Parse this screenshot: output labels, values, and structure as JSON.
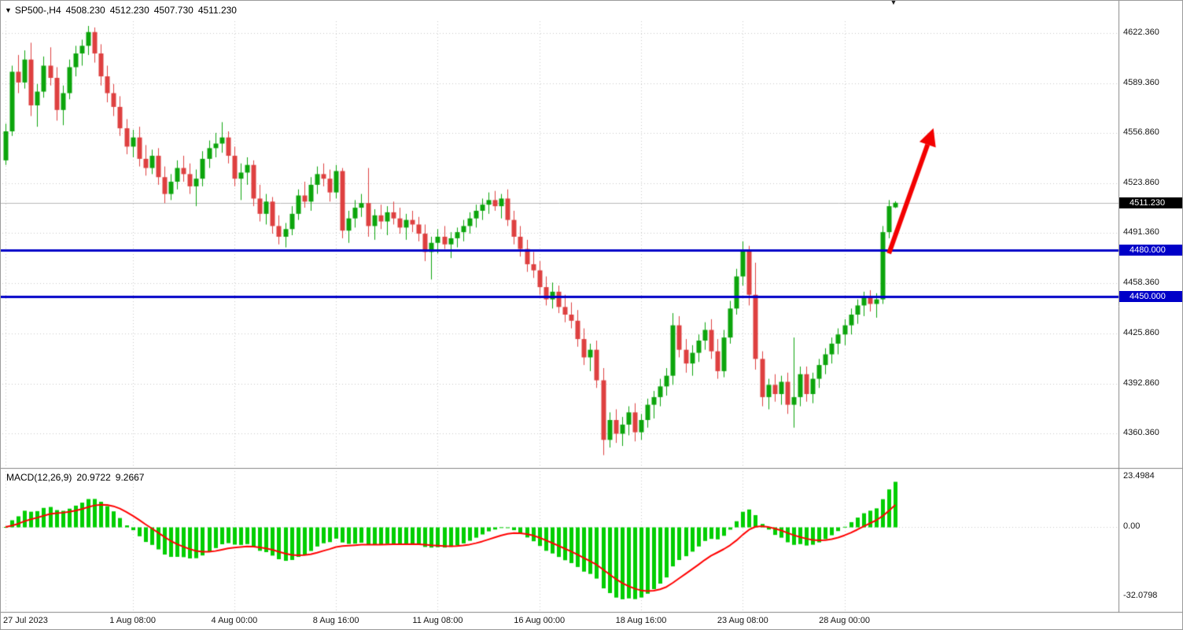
{
  "header": {
    "symbol_period": "SP500-,H4",
    "open": "4508.230",
    "high": "4512.230",
    "low": "4507.730",
    "close": "4511.230"
  },
  "price_axis": {
    "current": {
      "label": "4511.230",
      "value": 4511.23
    },
    "hlines": [
      {
        "label": "4480.000",
        "value": 4480.0
      },
      {
        "label": "4450.000",
        "value": 4450.0
      }
    ]
  },
  "macd": {
    "title": "MACD(12,26,9)",
    "macd_value": "20.9722",
    "signal_value": "9.2667"
  },
  "colors": {
    "grid": "#c9c9c9",
    "separator": "#848484",
    "candle_up": "#0ca50c",
    "candle_down": "#de4040",
    "macd_hist": "#00ce00",
    "macd_signal": "#ff0000",
    "hline_blue": "#0000c8",
    "current_line": "#b8b8b8",
    "current_tag_bg": "#000000",
    "arrow": "#f30000",
    "text": "#000000"
  },
  "chart_data": {
    "type": "candlestick",
    "symbol": "SP500-",
    "timeframe": "H4",
    "title": "SP500-,H4",
    "y_axis": {
      "visible_range": [
        4339,
        4630
      ],
      "ticks": [
        {
          "label": "4622.360",
          "value": 4622.36
        },
        {
          "label": "4589.360",
          "value": 4589.36
        },
        {
          "label": "4556.860",
          "value": 4556.86
        },
        {
          "label": "4523.860",
          "value": 4523.86
        },
        {
          "label": "4491.360",
          "value": 4491.36
        },
        {
          "label": "4458.360",
          "value": 4458.36
        },
        {
          "label": "4425.860",
          "value": 4425.86
        },
        {
          "label": "4392.860",
          "value": 4392.86
        },
        {
          "label": "4360.360",
          "value": 4360.36
        }
      ]
    },
    "x_axis": {
      "bars_visible": 141,
      "ticks": [
        {
          "label": "27 Jul 2023",
          "index": 0
        },
        {
          "label": "1 Aug 08:00",
          "index": 20
        },
        {
          "label": "4 Aug 00:00",
          "index": 36
        },
        {
          "label": "8 Aug 16:00",
          "index": 52
        },
        {
          "label": "11 Aug 08:00",
          "index": 68
        },
        {
          "label": "16 Aug 00:00",
          "index": 84
        },
        {
          "label": "18 Aug 16:00",
          "index": 100
        },
        {
          "label": "23 Aug 08:00",
          "index": 116
        },
        {
          "label": "28 Aug 00:00",
          "index": 132
        }
      ]
    },
    "candles": [
      [
        4539,
        4563,
        4536,
        4558
      ],
      [
        4558,
        4601,
        4555,
        4597
      ],
      [
        4597,
        4608,
        4583,
        4590
      ],
      [
        4590,
        4611,
        4586,
        4605
      ],
      [
        4605,
        4616,
        4568,
        4575
      ],
      [
        4575,
        4589,
        4561,
        4584
      ],
      [
        4584,
        4607,
        4580,
        4601
      ],
      [
        4601,
        4613,
        4588,
        4593
      ],
      [
        4593,
        4600,
        4565,
        4572
      ],
      [
        4572,
        4588,
        4562,
        4583
      ],
      [
        4583,
        4605,
        4579,
        4600
      ],
      [
        4600,
        4614,
        4594,
        4609
      ],
      [
        4609,
        4618,
        4601,
        4614
      ],
      [
        4614,
        4627,
        4608,
        4623
      ],
      [
        4623,
        4626,
        4603,
        4609
      ],
      [
        4609,
        4615,
        4588,
        4594
      ],
      [
        4594,
        4601,
        4577,
        4583
      ],
      [
        4583,
        4589,
        4568,
        4574
      ],
      [
        4574,
        4581,
        4555,
        4560
      ],
      [
        4560,
        4566,
        4543,
        4548
      ],
      [
        4548,
        4559,
        4541,
        4554
      ],
      [
        4554,
        4561,
        4535,
        4540
      ],
      [
        4540,
        4549,
        4529,
        4534
      ],
      [
        4534,
        4546,
        4530,
        4542
      ],
      [
        4542,
        4547,
        4523,
        4528
      ],
      [
        4528,
        4535,
        4511,
        4517
      ],
      [
        4517,
        4530,
        4513,
        4525
      ],
      [
        4525,
        4539,
        4520,
        4534
      ],
      [
        4534,
        4542,
        4525,
        4530
      ],
      [
        4530,
        4537,
        4517,
        4522
      ],
      [
        4522,
        4533,
        4509,
        4527
      ],
      [
        4527,
        4545,
        4522,
        4540
      ],
      [
        4540,
        4552,
        4534,
        4547
      ],
      [
        4547,
        4557,
        4541,
        4550
      ],
      [
        4550,
        4564,
        4544,
        4554
      ],
      [
        4554,
        4558,
        4537,
        4542
      ],
      [
        4542,
        4548,
        4522,
        4527
      ],
      [
        4527,
        4537,
        4513,
        4531
      ],
      [
        4531,
        4541,
        4523,
        4536
      ],
      [
        4536,
        4539,
        4509,
        4514
      ],
      [
        4514,
        4523,
        4499,
        4504
      ],
      [
        4504,
        4517,
        4497,
        4512
      ],
      [
        4512,
        4515,
        4491,
        4496
      ],
      [
        4496,
        4503,
        4484,
        4489
      ],
      [
        4489,
        4498,
        4482,
        4494
      ],
      [
        4494,
        4509,
        4490,
        4504
      ],
      [
        4504,
        4520,
        4500,
        4516
      ],
      [
        4516,
        4525,
        4508,
        4512
      ],
      [
        4512,
        4528,
        4506,
        4523
      ],
      [
        4523,
        4535,
        4517,
        4530
      ],
      [
        4530,
        4537,
        4522,
        4527
      ],
      [
        4527,
        4533,
        4512,
        4518
      ],
      [
        4518,
        4536,
        4514,
        4532
      ],
      [
        4532,
        4534,
        4488,
        4493
      ],
      [
        4493,
        4506,
        4485,
        4501
      ],
      [
        4501,
        4513,
        4495,
        4508
      ],
      [
        4508,
        4517,
        4502,
        4511
      ],
      [
        4511,
        4534,
        4489,
        4496
      ],
      [
        4496,
        4507,
        4487,
        4503
      ],
      [
        4503,
        4510,
        4494,
        4499
      ],
      [
        4499,
        4509,
        4490,
        4505
      ],
      [
        4505,
        4512,
        4497,
        4501
      ],
      [
        4501,
        4508,
        4491,
        4495
      ],
      [
        4495,
        4504,
        4487,
        4500
      ],
      [
        4500,
        4506,
        4492,
        4497
      ],
      [
        4497,
        4502,
        4486,
        4491
      ],
      [
        4491,
        4497,
        4473,
        4479
      ],
      [
        4479,
        4489,
        4461,
        4485
      ],
      [
        4485,
        4494,
        4478,
        4489
      ],
      [
        4489,
        4496,
        4481,
        4484
      ],
      [
        4484,
        4492,
        4475,
        4488
      ],
      [
        4488,
        4495,
        4482,
        4492
      ],
      [
        4492,
        4500,
        4486,
        4496
      ],
      [
        4496,
        4505,
        4491,
        4501
      ],
      [
        4501,
        4510,
        4495,
        4506
      ],
      [
        4506,
        4514,
        4500,
        4510
      ],
      [
        4510,
        4518,
        4504,
        4513
      ],
      [
        4513,
        4519,
        4506,
        4509
      ],
      [
        4509,
        4517,
        4501,
        4514
      ],
      [
        4514,
        4520,
        4496,
        4500
      ],
      [
        4500,
        4506,
        4484,
        4489
      ],
      [
        4489,
        4496,
        4476,
        4481
      ],
      [
        4481,
        4487,
        4466,
        4471
      ],
      [
        4471,
        4479,
        4462,
        4467
      ],
      [
        4467,
        4473,
        4451,
        4456
      ],
      [
        4456,
        4463,
        4444,
        4448
      ],
      [
        4448,
        4459,
        4442,
        4453
      ],
      [
        4453,
        4457,
        4439,
        4443
      ],
      [
        4443,
        4451,
        4433,
        4438
      ],
      [
        4438,
        4446,
        4429,
        4434
      ],
      [
        4434,
        4441,
        4417,
        4422
      ],
      [
        4422,
        4429,
        4405,
        4410
      ],
      [
        4410,
        4419,
        4401,
        4415
      ],
      [
        4415,
        4421,
        4390,
        4395
      ],
      [
        4395,
        4403,
        4346,
        4356
      ],
      [
        4356,
        4374,
        4351,
        4369
      ],
      [
        4369,
        4376,
        4354,
        4360
      ],
      [
        4360,
        4371,
        4352,
        4366
      ],
      [
        4366,
        4378,
        4359,
        4374
      ],
      [
        4374,
        4380,
        4355,
        4361
      ],
      [
        4361,
        4373,
        4356,
        4369
      ],
      [
        4369,
        4383,
        4364,
        4379
      ],
      [
        4379,
        4388,
        4370,
        4384
      ],
      [
        4384,
        4396,
        4378,
        4391
      ],
      [
        4391,
        4403,
        4385,
        4398
      ],
      [
        4398,
        4439,
        4392,
        4431
      ],
      [
        4431,
        4437,
        4410,
        4415
      ],
      [
        4415,
        4422,
        4400,
        4406
      ],
      [
        4406,
        4418,
        4398,
        4413
      ],
      [
        4413,
        4425,
        4407,
        4421
      ],
      [
        4421,
        4433,
        4415,
        4428
      ],
      [
        4428,
        4435,
        4409,
        4414
      ],
      [
        4414,
        4422,
        4396,
        4401
      ],
      [
        4401,
        4428,
        4397,
        4423
      ],
      [
        4423,
        4447,
        4419,
        4442
      ],
      [
        4442,
        4468,
        4438,
        4463
      ],
      [
        4463,
        4486,
        4457,
        4480
      ],
      [
        4480,
        4483,
        4444,
        4451
      ],
      [
        4451,
        4472,
        4402,
        4409
      ],
      [
        4409,
        4414,
        4378,
        4384
      ],
      [
        4384,
        4396,
        4376,
        4392
      ],
      [
        4392,
        4399,
        4381,
        4386
      ],
      [
        4386,
        4398,
        4379,
        4394
      ],
      [
        4394,
        4400,
        4373,
        4379
      ],
      [
        4379,
        4423,
        4364,
        4384
      ],
      [
        4384,
        4404,
        4378,
        4399
      ],
      [
        4399,
        4404,
        4381,
        4386
      ],
      [
        4386,
        4400,
        4380,
        4396
      ],
      [
        4396,
        4409,
        4390,
        4405
      ],
      [
        4405,
        4416,
        4399,
        4412
      ],
      [
        4412,
        4423,
        4406,
        4419
      ],
      [
        4419,
        4429,
        4412,
        4425
      ],
      [
        4425,
        4435,
        4418,
        4431
      ],
      [
        4431,
        4442,
        4425,
        4438
      ],
      [
        4438,
        4448,
        4432,
        4444
      ],
      [
        4444,
        4453,
        4437,
        4449
      ],
      [
        4449,
        4454,
        4440,
        4445
      ],
      [
        4445,
        4452,
        4436,
        4448
      ],
      [
        4448,
        4496,
        4445,
        4492
      ],
      [
        4492,
        4513,
        4488,
        4509
      ],
      [
        4508.23,
        4512.23,
        4507.73,
        4511.23
      ]
    ],
    "overlays": {
      "horizontal_lines": [
        {
          "value": 4480.0,
          "label": "4480.000",
          "color": "#0000c8"
        },
        {
          "value": 4450.0,
          "label": "4450.000",
          "color": "#0000c8"
        }
      ],
      "current_price": {
        "value": 4511.23,
        "label": "4511.230"
      },
      "trend_arrow": {
        "from_bar": 139,
        "from_price": 4478,
        "to_bar": 146,
        "to_price": 4560,
        "color": "#f30000"
      }
    },
    "indicator": {
      "type": "macd",
      "name": "MACD(12,26,9)",
      "fast": 12,
      "slow": 26,
      "signal": 9,
      "current_macd": 20.9722,
      "current_signal": 9.2667,
      "axis_ticks": [
        {
          "label": "23.4984",
          "value": 23.4984
        },
        {
          "label": "0.00",
          "value": 0
        },
        {
          "label": "-32.0798",
          "value": -32.0798
        }
      ]
    }
  }
}
